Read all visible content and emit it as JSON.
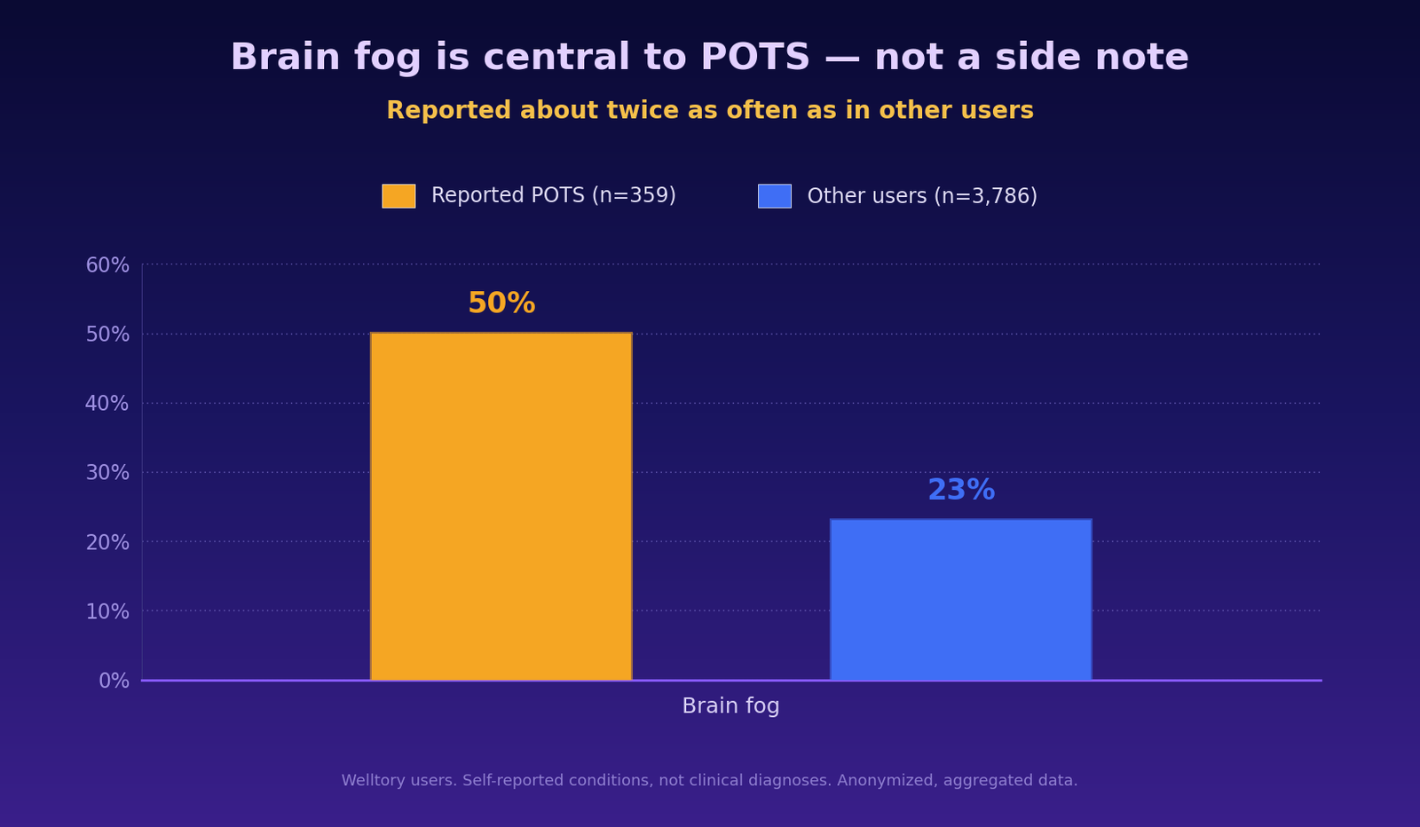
{
  "chart_data": {
    "type": "bar",
    "title": "Brain fog is central to POTS — not a side note",
    "subtitle": "Reported about twice as often as in other users",
    "categories": [
      "Brain fog"
    ],
    "series": [
      {
        "name": "Reported POTS (n=359)",
        "color": "#f5a623",
        "values": [
          50
        ],
        "value_labels": [
          "50%"
        ]
      },
      {
        "name": "Other users (n=3,786)",
        "color": "#3f6ef5",
        "values": [
          23
        ],
        "value_labels": [
          "23%"
        ]
      }
    ],
    "ylim": [
      0,
      60
    ],
    "yticks": [
      {
        "value": 0,
        "label": "0%"
      },
      {
        "value": 10,
        "label": "10%"
      },
      {
        "value": 20,
        "label": "20%"
      },
      {
        "value": 30,
        "label": "30%"
      },
      {
        "value": 40,
        "label": "40%"
      },
      {
        "value": 50,
        "label": "50%"
      },
      {
        "value": 60,
        "label": "60%"
      }
    ],
    "grid": true,
    "legend": "upper center",
    "data_labels": true,
    "note": "Welltory users. Self-reported conditions, not clinical diagnoses. Anonymized, aggregated data."
  }
}
